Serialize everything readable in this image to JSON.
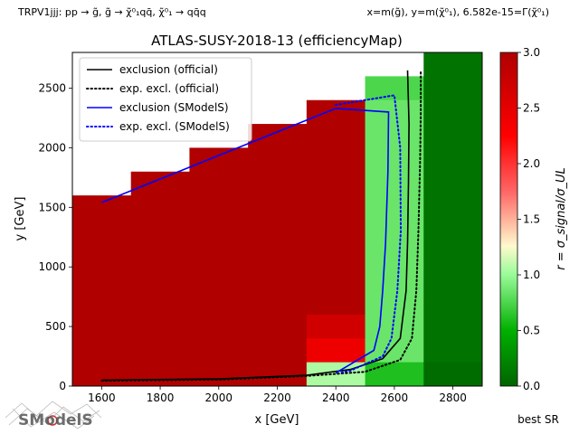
{
  "header": {
    "left": "TRPV1jjj: pp → g̃, g̃ → χ̃⁰₁qq̄, χ̃⁰₁ → qq̄q",
    "right": "x=m(g̃), y=m(χ̃⁰₁), 6.582e-15=Γ(χ̃⁰₁)"
  },
  "footer": {
    "best_sr": "best SR",
    "logo_text": "SModelS"
  },
  "chart_data": {
    "type": "heatmap",
    "title": "ATLAS-SUSY-2018-13 (efficiencyMap)",
    "xlabel": "x [GeV]",
    "ylabel": "y [GeV]",
    "xlim": [
      1500,
      2900
    ],
    "ylim": [
      0,
      2800
    ],
    "xticks": [
      "1600",
      "1800",
      "2000",
      "2200",
      "2400",
      "2600",
      "2800"
    ],
    "yticks": [
      "0",
      "500",
      "1000",
      "1500",
      "2000",
      "2500"
    ],
    "colorbar": {
      "label": "r = σ_signal/σ_UL",
      "range": [
        0.0,
        3.0
      ],
      "ticks": [
        "0.0",
        "0.5",
        "1.0",
        "1.5",
        "2.0",
        "2.5",
        "3.0"
      ],
      "colors": [
        "#006400",
        "#00b000",
        "#98fb98",
        "#fffacd",
        "#ff6666",
        "#ff0000",
        "#b00000"
      ]
    },
    "cells": [
      {
        "x0": 1500,
        "x1": 1700,
        "y0": 0,
        "y1": 1600,
        "r": 3.0
      },
      {
        "x0": 1700,
        "x1": 1900,
        "y0": 0,
        "y1": 1800,
        "r": 3.0
      },
      {
        "x0": 1900,
        "x1": 2100,
        "y0": 0,
        "y1": 2000,
        "r": 3.0
      },
      {
        "x0": 2100,
        "x1": 2300,
        "y0": 0,
        "y1": 2200,
        "r": 3.0
      },
      {
        "x0": 2300,
        "x1": 2500,
        "y0": 600,
        "y1": 2400,
        "r": 3.0
      },
      {
        "x0": 2300,
        "x1": 2500,
        "y0": 400,
        "y1": 600,
        "r": 2.7
      },
      {
        "x0": 2300,
        "x1": 2500,
        "y0": 200,
        "y1": 400,
        "r": 2.4
      },
      {
        "x0": 2300,
        "x1": 2500,
        "y0": 0,
        "y1": 200,
        "r": 1.05
      },
      {
        "x0": 2500,
        "x1": 2700,
        "y0": 2400,
        "y1": 2600,
        "r": 0.75
      },
      {
        "x0": 2500,
        "x1": 2700,
        "y0": 200,
        "y1": 2400,
        "r": 0.85
      },
      {
        "x0": 2500,
        "x1": 2700,
        "y0": 0,
        "y1": 200,
        "r": 0.6
      },
      {
        "x0": 2700,
        "x1": 2900,
        "y0": 200,
        "y1": 2800,
        "r": 0.1
      },
      {
        "x0": 2700,
        "x1": 2900,
        "y0": 0,
        "y1": 200,
        "r": 0.05
      }
    ],
    "series": [
      {
        "name": "exclusion (official)",
        "color": "#000000",
        "dash": "solid",
        "points": [
          [
            1600,
            50
          ],
          [
            2000,
            60
          ],
          [
            2300,
            90
          ],
          [
            2450,
            140
          ],
          [
            2560,
            230
          ],
          [
            2620,
            400
          ],
          [
            2640,
            800
          ],
          [
            2645,
            1200
          ],
          [
            2648,
            1700
          ],
          [
            2650,
            2200
          ],
          [
            2645,
            2650
          ]
        ]
      },
      {
        "name": "exp. excl. (official)",
        "color": "#000000",
        "dash": "dotted",
        "points": [
          [
            1600,
            45
          ],
          [
            2000,
            55
          ],
          [
            2300,
            85
          ],
          [
            2500,
            120
          ],
          [
            2620,
            220
          ],
          [
            2660,
            400
          ],
          [
            2675,
            800
          ],
          [
            2682,
            1300
          ],
          [
            2688,
            1900
          ],
          [
            2690,
            2300
          ],
          [
            2690,
            2650
          ]
        ]
      },
      {
        "name": "exclusion (SModelS)",
        "color": "#0000ff",
        "dash": "solid",
        "points": [
          [
            1600,
            1540
          ],
          [
            2400,
            2330
          ],
          [
            2580,
            2300
          ],
          [
            2578,
            1800
          ],
          [
            2570,
            1200
          ],
          [
            2560,
            800
          ],
          [
            2550,
            500
          ],
          [
            2530,
            300
          ],
          [
            2400,
            110
          ]
        ]
      },
      {
        "name": "exp. excl. (SModelS)",
        "color": "#0000ff",
        "dash": "dotted",
        "points": [
          [
            2400,
            2360
          ],
          [
            2600,
            2440
          ],
          [
            2620,
            2000
          ],
          [
            2622,
            1300
          ],
          [
            2610,
            800
          ],
          [
            2590,
            400
          ],
          [
            2560,
            250
          ],
          [
            2450,
            130
          ],
          [
            2420,
            115
          ]
        ]
      }
    ],
    "legend_position": "top-left"
  }
}
